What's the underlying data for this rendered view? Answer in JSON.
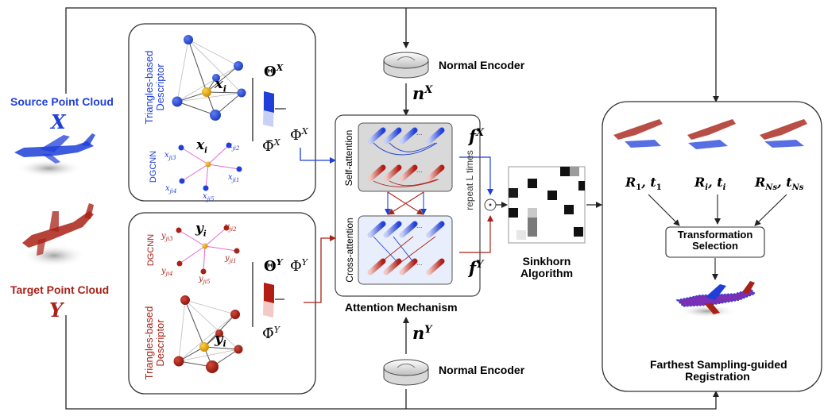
{
  "colors": {
    "source": "#1f3fd8",
    "target": "#a82218",
    "line": "#222222"
  },
  "inputs": {
    "source_title": "Source Point Cloud",
    "source_symbol": "X",
    "target_title": "Target Point Cloud",
    "target_symbol": "Y"
  },
  "source_branch": {
    "descriptor_line1": "Triangles-based",
    "descriptor_line2": "Descriptor",
    "dgcnn": "DGCNN",
    "center_node": "x",
    "center_sub": "i",
    "theta": "Θ",
    "theta_sup": "X",
    "phi_bar": "Φ̄",
    "phi_bar_sup": "X",
    "phi": "Φ",
    "phi_sup": "X",
    "neighbors": [
      "x",
      "x",
      "x",
      "x",
      "x"
    ],
    "neighbor_subs": [
      "ji3",
      "ji2",
      "ji1",
      "ji4",
      "ji5"
    ]
  },
  "target_branch": {
    "descriptor_line1": "Triangles-based",
    "descriptor_line2": "Descriptor",
    "dgcnn": "DGCNN",
    "center_node": "y",
    "center_sub": "i",
    "theta": "Θ",
    "theta_sup": "Y",
    "phi_bar": "Φ̄",
    "phi_bar_sup": "Y",
    "phi": "Φ",
    "phi_sup": "Y",
    "neighbors": [
      "y",
      "y",
      "y",
      "y",
      "y"
    ],
    "neighbor_subs": [
      "ji3",
      "ji2",
      "ji1",
      "ji4",
      "ji5"
    ]
  },
  "encoders": {
    "top_label": "Normal Encoder",
    "top_symbol": "n",
    "top_sup": "X",
    "bottom_label": "Normal Encoder",
    "bottom_symbol": "n",
    "bottom_sup": "Y"
  },
  "attention": {
    "self_label": "Self-attention",
    "cross_label": "Cross-attention",
    "repeat_label": "repeat L times",
    "caption": "Attention Mechanism",
    "f_x": "f",
    "f_x_sup": "X",
    "f_y": "f",
    "f_y_sup": "Y",
    "ellipsis": "..."
  },
  "sinkhorn": {
    "line1": "Sinkhorn",
    "line2": "Algorithm"
  },
  "registration": {
    "r1": "R",
    "r1_sub": "1",
    "t1": "t",
    "t1_sub": "1",
    "ri": "R",
    "ri_sub": "i",
    "ti": "t",
    "ti_sub": "i",
    "rn": "R",
    "rn_sub": "Ns",
    "tn": "t",
    "tn_sub": "Ns",
    "selection_line1": "Transformation",
    "selection_line2": "Selection",
    "caption_line1": "Farthest Sampling-guided",
    "caption_line2": "Registration"
  }
}
